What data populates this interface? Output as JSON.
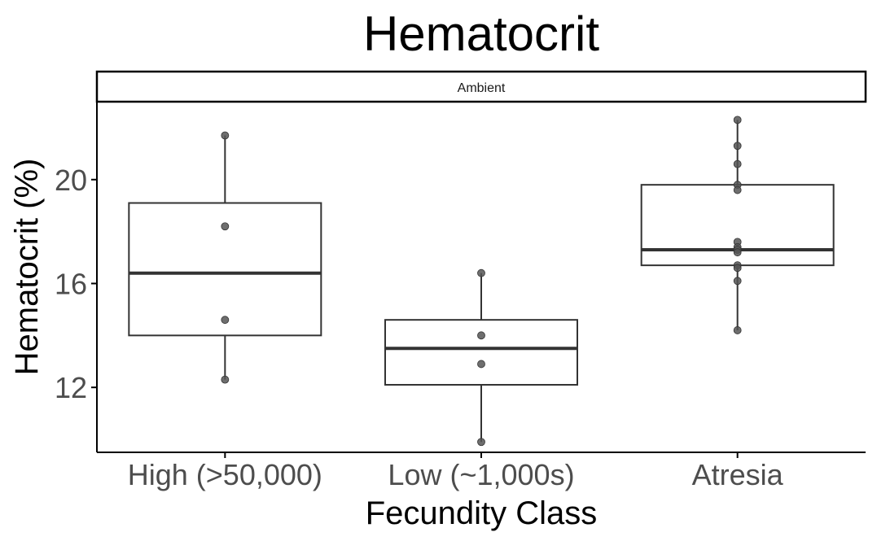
{
  "chart_data": {
    "type": "boxplot",
    "title": "Hematocrit",
    "facet_label": "Ambient",
    "xlabel": "Fecundity Class",
    "ylabel": "Hematocrit (%)",
    "ylim": [
      9.5,
      23
    ],
    "y_ticks": [
      12,
      16,
      20
    ],
    "grid": false,
    "legend": "none",
    "colors": {
      "box_line": "#333333",
      "point": "#555555",
      "axis": "#000000"
    },
    "categories": [
      "High (>50,000)",
      "Low (~1,000s)",
      "Atresia"
    ],
    "boxes": [
      {
        "category": "High (>50,000)",
        "whisker_low": 12.3,
        "q1": 14.0,
        "median": 16.4,
        "q3": 19.1,
        "whisker_high": 21.7,
        "points": [
          21.7,
          18.2,
          14.6,
          12.3
        ]
      },
      {
        "category": "Low (~1,000s)",
        "whisker_low": 9.9,
        "q1": 12.1,
        "median": 13.5,
        "q3": 14.6,
        "whisker_high": 16.4,
        "points": [
          16.4,
          14.0,
          12.9,
          9.9
        ]
      },
      {
        "category": "Atresia",
        "whisker_low": 14.2,
        "q1": 16.7,
        "median": 17.3,
        "q3": 19.8,
        "whisker_high": 22.3,
        "points": [
          22.3,
          21.3,
          20.6,
          19.8,
          19.6,
          17.6,
          17.4,
          17.3,
          17.2,
          16.7,
          16.6,
          16.1,
          14.2
        ]
      }
    ]
  }
}
